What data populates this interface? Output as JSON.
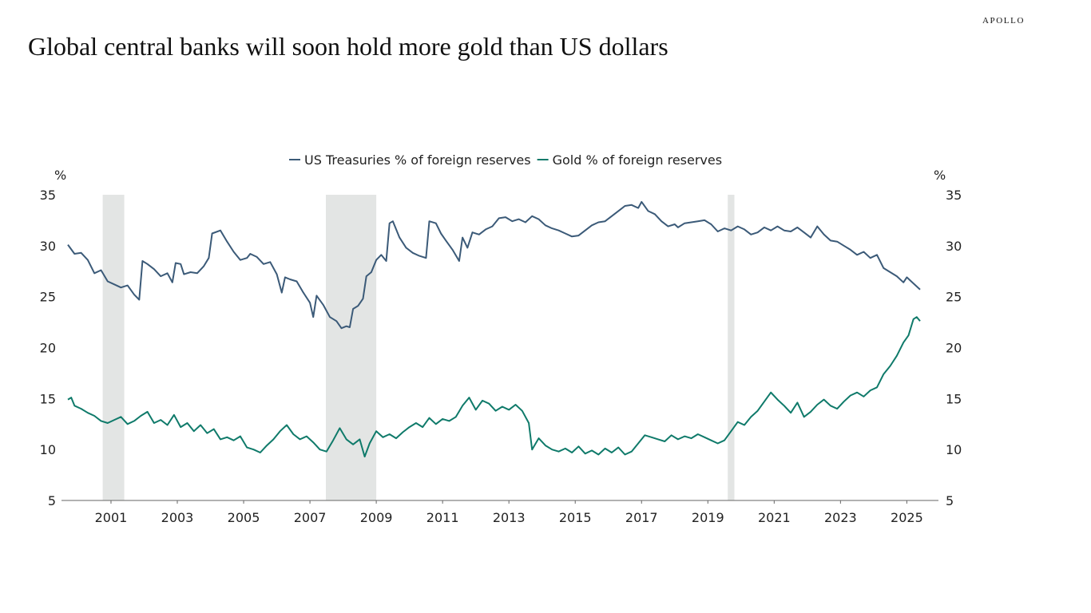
{
  "brand": "APOLLO",
  "chart_data": {
    "type": "line",
    "title": "Global central banks will soon hold more gold than US dollars",
    "ylabel_left": "%",
    "ylabel_right": "%",
    "ylim": [
      5,
      35
    ],
    "yticks": [
      5,
      10,
      15,
      20,
      25,
      30,
      35
    ],
    "xlim": [
      2000.2,
      2025.9
    ],
    "xticks": [
      2001,
      2003,
      2005,
      2007,
      2009,
      2011,
      2013,
      2015,
      2017,
      2019,
      2021,
      2023,
      2025
    ],
    "legend_position": "top-center",
    "grid": false,
    "shaded_periods": [
      [
        2001.25,
        2001.9
      ],
      [
        2007.98,
        2009.5
      ],
      [
        2020.1,
        2020.3
      ]
    ],
    "series": [
      {
        "name": "US Treasuries % of foreign reserves",
        "color": "#3b5a78",
        "points": [
          [
            2000.2,
            30.1
          ],
          [
            2000.4,
            29.2
          ],
          [
            2000.6,
            29.3
          ],
          [
            2000.8,
            28.6
          ],
          [
            2001.0,
            27.3
          ],
          [
            2001.2,
            27.6
          ],
          [
            2001.4,
            26.5
          ],
          [
            2001.6,
            26.2
          ],
          [
            2001.8,
            25.9
          ],
          [
            2002.0,
            26.1
          ],
          [
            2002.2,
            25.2
          ],
          [
            2002.35,
            24.7
          ],
          [
            2002.45,
            28.5
          ],
          [
            2002.6,
            28.2
          ],
          [
            2002.8,
            27.7
          ],
          [
            2003.0,
            27.0
          ],
          [
            2003.2,
            27.3
          ],
          [
            2003.35,
            26.4
          ],
          [
            2003.45,
            28.3
          ],
          [
            2003.6,
            28.2
          ],
          [
            2003.7,
            27.2
          ],
          [
            2003.9,
            27.4
          ],
          [
            2004.1,
            27.3
          ],
          [
            2004.3,
            28.0
          ],
          [
            2004.45,
            28.8
          ],
          [
            2004.55,
            31.2
          ],
          [
            2004.8,
            31.5
          ],
          [
            2005.0,
            30.4
          ],
          [
            2005.2,
            29.4
          ],
          [
            2005.4,
            28.6
          ],
          [
            2005.6,
            28.8
          ],
          [
            2005.7,
            29.2
          ],
          [
            2005.9,
            28.9
          ],
          [
            2006.1,
            28.2
          ],
          [
            2006.3,
            28.4
          ],
          [
            2006.5,
            27.2
          ],
          [
            2006.65,
            25.4
          ],
          [
            2006.75,
            26.9
          ],
          [
            2006.9,
            26.7
          ],
          [
            2007.1,
            26.5
          ],
          [
            2007.3,
            25.4
          ],
          [
            2007.5,
            24.4
          ],
          [
            2007.6,
            23.0
          ],
          [
            2007.7,
            25.1
          ],
          [
            2007.9,
            24.2
          ],
          [
            2008.1,
            23.0
          ],
          [
            2008.3,
            22.6
          ],
          [
            2008.45,
            21.9
          ],
          [
            2008.6,
            22.1
          ],
          [
            2008.7,
            22.0
          ],
          [
            2008.8,
            23.8
          ],
          [
            2008.95,
            24.1
          ],
          [
            2009.1,
            24.8
          ],
          [
            2009.2,
            27.0
          ],
          [
            2009.35,
            27.4
          ],
          [
            2009.5,
            28.6
          ],
          [
            2009.65,
            29.1
          ],
          [
            2009.8,
            28.5
          ],
          [
            2009.9,
            32.2
          ],
          [
            2010.0,
            32.4
          ],
          [
            2010.2,
            30.8
          ],
          [
            2010.4,
            29.8
          ],
          [
            2010.6,
            29.3
          ],
          [
            2010.8,
            29.0
          ],
          [
            2011.0,
            28.8
          ],
          [
            2011.1,
            32.4
          ],
          [
            2011.3,
            32.2
          ],
          [
            2011.45,
            31.2
          ],
          [
            2011.6,
            30.5
          ],
          [
            2011.8,
            29.6
          ],
          [
            2012.0,
            28.5
          ],
          [
            2012.1,
            30.8
          ],
          [
            2012.25,
            29.8
          ],
          [
            2012.4,
            31.3
          ],
          [
            2012.6,
            31.1
          ],
          [
            2012.8,
            31.6
          ],
          [
            2013.0,
            31.9
          ],
          [
            2013.2,
            32.7
          ],
          [
            2013.4,
            32.8
          ],
          [
            2013.6,
            32.4
          ],
          [
            2013.8,
            32.6
          ],
          [
            2014.0,
            32.3
          ],
          [
            2014.2,
            32.9
          ],
          [
            2014.4,
            32.6
          ],
          [
            2014.6,
            32.0
          ],
          [
            2014.8,
            31.7
          ],
          [
            2015.0,
            31.5
          ],
          [
            2015.2,
            31.2
          ],
          [
            2015.4,
            30.9
          ],
          [
            2015.6,
            31.0
          ],
          [
            2015.8,
            31.5
          ],
          [
            2016.0,
            32.0
          ],
          [
            2016.2,
            32.3
          ],
          [
            2016.4,
            32.4
          ],
          [
            2016.6,
            32.9
          ],
          [
            2016.8,
            33.4
          ],
          [
            2017.0,
            33.9
          ],
          [
            2017.2,
            34.0
          ],
          [
            2017.4,
            33.7
          ],
          [
            2017.5,
            34.3
          ],
          [
            2017.7,
            33.4
          ],
          [
            2017.9,
            33.1
          ],
          [
            2018.1,
            32.4
          ],
          [
            2018.3,
            31.9
          ],
          [
            2018.5,
            32.1
          ],
          [
            2018.6,
            31.8
          ],
          [
            2018.8,
            32.2
          ],
          [
            2019.0,
            32.3
          ],
          [
            2019.2,
            32.4
          ],
          [
            2019.4,
            32.5
          ],
          [
            2019.6,
            32.1
          ],
          [
            2019.8,
            31.4
          ],
          [
            2020.0,
            31.7
          ],
          [
            2020.2,
            31.5
          ],
          [
            2020.4,
            31.9
          ],
          [
            2020.6,
            31.6
          ],
          [
            2020.8,
            31.1
          ],
          [
            2021.0,
            31.3
          ],
          [
            2021.2,
            31.8
          ],
          [
            2021.4,
            31.5
          ],
          [
            2021.6,
            31.9
          ],
          [
            2021.8,
            31.5
          ],
          [
            2022.0,
            31.4
          ],
          [
            2022.2,
            31.8
          ],
          [
            2022.4,
            31.3
          ],
          [
            2022.6,
            30.8
          ],
          [
            2022.8,
            31.9
          ],
          [
            2023.0,
            31.1
          ],
          [
            2023.2,
            30.5
          ],
          [
            2023.4,
            30.4
          ],
          [
            2023.6,
            30.0
          ],
          [
            2023.8,
            29.6
          ],
          [
            2024.0,
            29.1
          ],
          [
            2024.2,
            29.4
          ],
          [
            2024.4,
            28.8
          ],
          [
            2024.6,
            29.1
          ],
          [
            2024.8,
            27.8
          ],
          [
            2025.0,
            27.4
          ],
          [
            2025.2,
            27.0
          ],
          [
            2025.4,
            26.4
          ],
          [
            2025.5,
            26.9
          ],
          [
            2025.7,
            26.3
          ],
          [
            2025.9,
            25.7
          ]
        ]
      },
      {
        "name": "Gold % of foreign reserves",
        "color": "#0f7a6a",
        "points": [
          [
            2000.2,
            14.9
          ],
          [
            2000.3,
            15.1
          ],
          [
            2000.4,
            14.3
          ],
          [
            2000.6,
            14.0
          ],
          [
            2000.8,
            13.6
          ],
          [
            2001.0,
            13.3
          ],
          [
            2001.2,
            12.8
          ],
          [
            2001.4,
            12.6
          ],
          [
            2001.6,
            12.9
          ],
          [
            2001.8,
            13.2
          ],
          [
            2002.0,
            12.5
          ],
          [
            2002.2,
            12.8
          ],
          [
            2002.4,
            13.3
          ],
          [
            2002.6,
            13.7
          ],
          [
            2002.8,
            12.6
          ],
          [
            2003.0,
            12.9
          ],
          [
            2003.2,
            12.4
          ],
          [
            2003.4,
            13.4
          ],
          [
            2003.6,
            12.2
          ],
          [
            2003.8,
            12.6
          ],
          [
            2004.0,
            11.8
          ],
          [
            2004.2,
            12.4
          ],
          [
            2004.4,
            11.6
          ],
          [
            2004.6,
            12.0
          ],
          [
            2004.8,
            11.0
          ],
          [
            2005.0,
            11.2
          ],
          [
            2005.2,
            10.9
          ],
          [
            2005.4,
            11.3
          ],
          [
            2005.6,
            10.2
          ],
          [
            2005.8,
            10.0
          ],
          [
            2006.0,
            9.7
          ],
          [
            2006.2,
            10.4
          ],
          [
            2006.4,
            11.0
          ],
          [
            2006.6,
            11.8
          ],
          [
            2006.8,
            12.4
          ],
          [
            2007.0,
            11.5
          ],
          [
            2007.2,
            11.0
          ],
          [
            2007.4,
            11.3
          ],
          [
            2007.6,
            10.7
          ],
          [
            2007.8,
            10.0
          ],
          [
            2008.0,
            9.8
          ],
          [
            2008.2,
            10.9
          ],
          [
            2008.4,
            12.1
          ],
          [
            2008.6,
            11.0
          ],
          [
            2008.8,
            10.5
          ],
          [
            2009.0,
            11.0
          ],
          [
            2009.15,
            9.3
          ],
          [
            2009.3,
            10.6
          ],
          [
            2009.5,
            11.8
          ],
          [
            2009.7,
            11.2
          ],
          [
            2009.9,
            11.5
          ],
          [
            2010.1,
            11.1
          ],
          [
            2010.3,
            11.7
          ],
          [
            2010.5,
            12.2
          ],
          [
            2010.7,
            12.6
          ],
          [
            2010.9,
            12.2
          ],
          [
            2011.1,
            13.1
          ],
          [
            2011.3,
            12.5
          ],
          [
            2011.5,
            13.0
          ],
          [
            2011.7,
            12.8
          ],
          [
            2011.9,
            13.2
          ],
          [
            2012.1,
            14.3
          ],
          [
            2012.3,
            15.1
          ],
          [
            2012.5,
            13.9
          ],
          [
            2012.7,
            14.8
          ],
          [
            2012.9,
            14.5
          ],
          [
            2013.1,
            13.8
          ],
          [
            2013.3,
            14.2
          ],
          [
            2013.5,
            13.9
          ],
          [
            2013.7,
            14.4
          ],
          [
            2013.9,
            13.8
          ],
          [
            2014.1,
            12.6
          ],
          [
            2014.2,
            10.0
          ],
          [
            2014.4,
            11.1
          ],
          [
            2014.6,
            10.4
          ],
          [
            2014.8,
            10.0
          ],
          [
            2015.0,
            9.8
          ],
          [
            2015.2,
            10.1
          ],
          [
            2015.4,
            9.7
          ],
          [
            2015.6,
            10.3
          ],
          [
            2015.8,
            9.6
          ],
          [
            2016.0,
            9.9
          ],
          [
            2016.2,
            9.5
          ],
          [
            2016.4,
            10.1
          ],
          [
            2016.6,
            9.7
          ],
          [
            2016.8,
            10.2
          ],
          [
            2017.0,
            9.5
          ],
          [
            2017.2,
            9.8
          ],
          [
            2017.4,
            10.6
          ],
          [
            2017.6,
            11.4
          ],
          [
            2017.8,
            11.2
          ],
          [
            2018.0,
            11.0
          ],
          [
            2018.2,
            10.8
          ],
          [
            2018.4,
            11.4
          ],
          [
            2018.6,
            11.0
          ],
          [
            2018.8,
            11.3
          ],
          [
            2019.0,
            11.1
          ],
          [
            2019.2,
            11.5
          ],
          [
            2019.4,
            11.2
          ],
          [
            2019.6,
            10.9
          ],
          [
            2019.8,
            10.6
          ],
          [
            2020.0,
            10.9
          ],
          [
            2020.2,
            11.8
          ],
          [
            2020.4,
            12.7
          ],
          [
            2020.6,
            12.4
          ],
          [
            2020.8,
            13.2
          ],
          [
            2021.0,
            13.8
          ],
          [
            2021.2,
            14.7
          ],
          [
            2021.4,
            15.6
          ],
          [
            2021.6,
            14.9
          ],
          [
            2021.8,
            14.3
          ],
          [
            2022.0,
            13.6
          ],
          [
            2022.2,
            14.6
          ],
          [
            2022.4,
            13.2
          ],
          [
            2022.6,
            13.7
          ],
          [
            2022.8,
            14.4
          ],
          [
            2023.0,
            14.9
          ],
          [
            2023.2,
            14.3
          ],
          [
            2023.4,
            14.0
          ],
          [
            2023.6,
            14.7
          ],
          [
            2023.8,
            15.3
          ],
          [
            2024.0,
            15.6
          ],
          [
            2024.2,
            15.2
          ],
          [
            2024.4,
            15.8
          ],
          [
            2024.6,
            16.1
          ],
          [
            2024.8,
            17.4
          ],
          [
            2025.0,
            18.2
          ],
          [
            2025.2,
            19.2
          ],
          [
            2025.4,
            20.5
          ],
          [
            2025.55,
            21.2
          ],
          [
            2025.7,
            22.8
          ],
          [
            2025.8,
            23.0
          ],
          [
            2025.9,
            22.6
          ]
        ]
      }
    ]
  }
}
